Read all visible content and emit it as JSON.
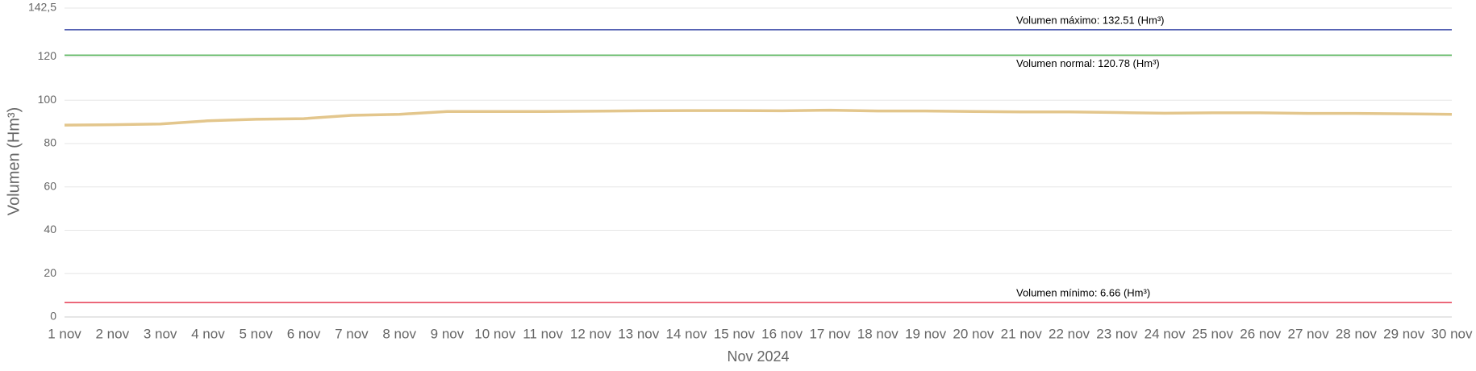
{
  "chart_data": {
    "type": "line",
    "x_label": "Nov 2024",
    "y_label": "Volumen (Hm³)",
    "categories": [
      "1 nov",
      "2 nov",
      "3 nov",
      "4 nov",
      "5 nov",
      "6 nov",
      "7 nov",
      "8 nov",
      "9 nov",
      "10 nov",
      "11 nov",
      "12 nov",
      "13 nov",
      "14 nov",
      "15 nov",
      "16 nov",
      "17 nov",
      "18 nov",
      "19 nov",
      "20 nov",
      "21 nov",
      "22 nov",
      "23 nov",
      "24 nov",
      "25 nov",
      "26 nov",
      "27 nov",
      "28 nov",
      "29 nov",
      "30 nov"
    ],
    "series": [
      {
        "name": "Volumen",
        "color": "#e3c68c",
        "values": [
          88.5,
          88.7,
          89,
          90.5,
          91.2,
          91.5,
          93,
          93.5,
          94.8,
          94.8,
          94.8,
          94.9,
          95.1,
          95.2,
          95.2,
          95.1,
          95.4,
          95,
          95,
          94.8,
          94.6,
          94.6,
          94.3,
          94,
          94.2,
          94.2,
          93.9,
          93.9,
          93.7,
          93.5
        ]
      }
    ],
    "reference_lines": [
      {
        "label": "Volumen máximo: 132.51 (Hm³)",
        "value": 132.51,
        "color": "#3b4aa8"
      },
      {
        "label": "Volumen normal: 120.78 (Hm³)",
        "value": 120.78,
        "color": "#4caf50"
      },
      {
        "label": "Volumen mínimo: 6.66 (Hm³)",
        "value": 6.66,
        "color": "#e53950"
      }
    ],
    "ylim": [
      0,
      142.5
    ],
    "yticks": [
      0,
      20,
      40,
      60,
      80,
      100,
      120,
      {
        "value": 142.5,
        "label": "142,5"
      }
    ],
    "grid": true
  }
}
